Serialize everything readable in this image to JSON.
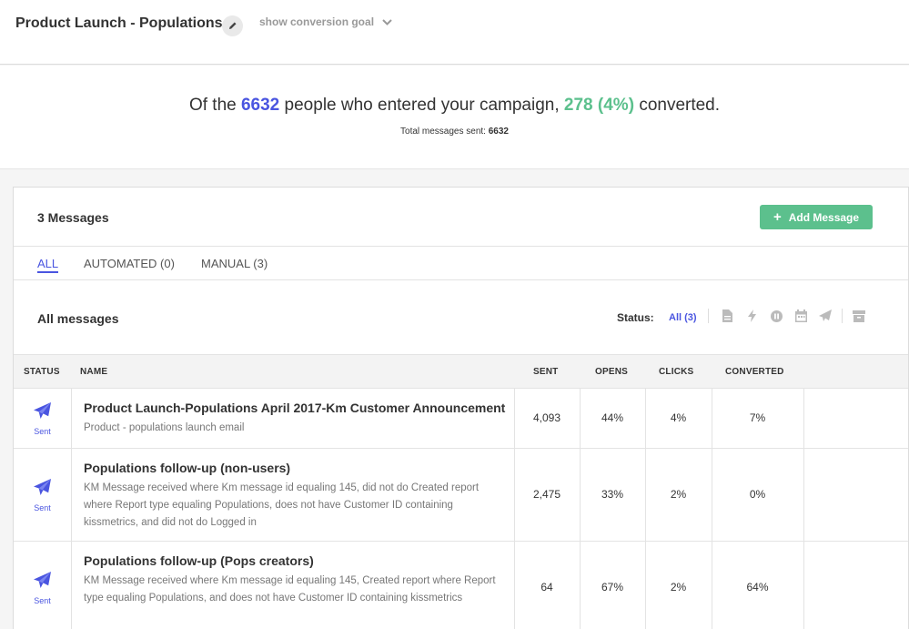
{
  "header": {
    "title": "Product Launch - Populations",
    "conversion_toggle": "show conversion goal"
  },
  "summary": {
    "prefix": "Of the",
    "entered": "6632",
    "middle": "people who entered your campaign,",
    "converted": "278 (4%)",
    "suffix": "converted.",
    "total_label": "Total messages sent:",
    "total_value": "6632"
  },
  "panel": {
    "count_label": "3 Messages",
    "add_button": "Add Message",
    "tabs": [
      {
        "label": "ALL",
        "active": true
      },
      {
        "label": "AUTOMATED (0)",
        "active": false
      },
      {
        "label": "MANUAL (3)",
        "active": false
      }
    ],
    "section_title": "All messages",
    "status_label": "Status:",
    "status_all": "All (3)",
    "status_icons": [
      "document-icon",
      "bolt-icon",
      "pause-icon",
      "calendar-icon",
      "send-icon",
      "archive-icon"
    ]
  },
  "table": {
    "columns": {
      "status": "STATUS",
      "name": "NAME",
      "sent": "SENT",
      "opens": "OPENS",
      "clicks": "CLICKS",
      "converted": "CONVERTED"
    },
    "rows": [
      {
        "status": "Sent",
        "title": "Product Launch-Populations April 2017-Km Customer Announcement",
        "description": "Product - populations launch email",
        "sent": "4,093",
        "opens": "44%",
        "clicks": "4%",
        "converted": "7%"
      },
      {
        "status": "Sent",
        "title": "Populations follow-up (non-users)",
        "description": "KM Message received where Km message id equaling 145, did not do Created report where Report type equaling Populations, does not have Customer ID containing kissmetrics, and did not do Logged in",
        "sent": "2,475",
        "opens": "33%",
        "clicks": "2%",
        "converted": "0%"
      },
      {
        "status": "Sent",
        "title": "Populations follow-up (Pops creators)",
        "description": "KM Message received where Km message id equaling 145, Created report where Report type equaling Populations, and does not have Customer ID containing kissmetrics",
        "sent": "64",
        "opens": "67%",
        "clicks": "2%",
        "converted": "64%"
      }
    ]
  },
  "colors": {
    "accent_blue": "#4a55e0",
    "accent_green": "#5cc08d"
  }
}
